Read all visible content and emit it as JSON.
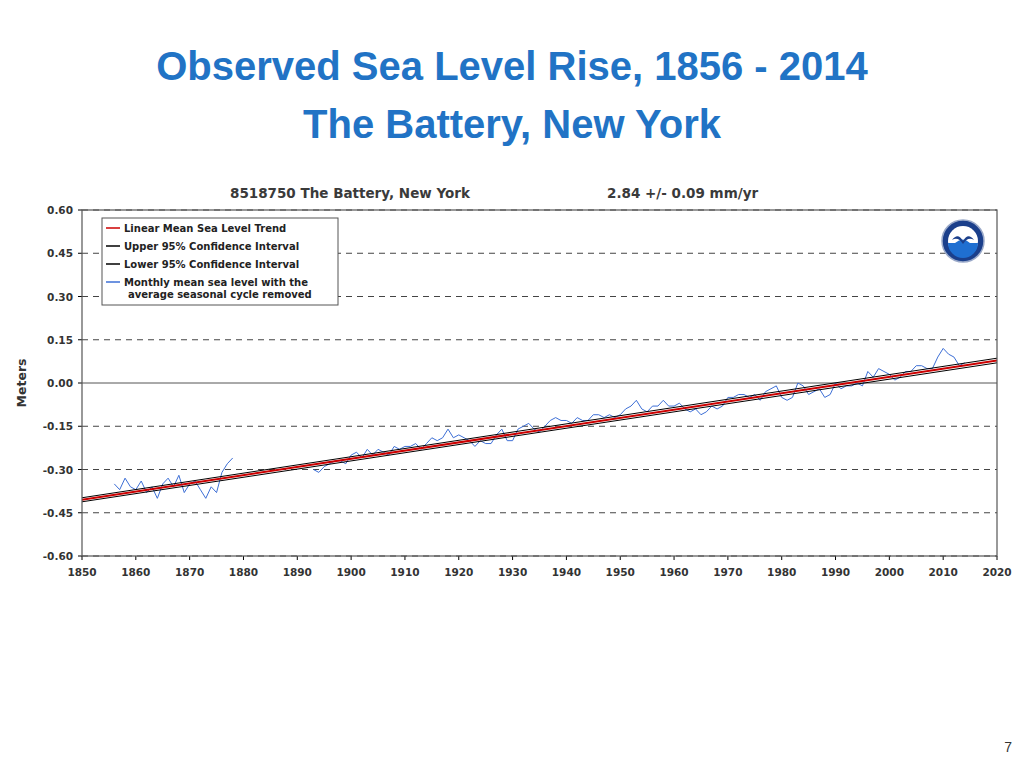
{
  "slide": {
    "title": "Observed Sea Level Rise, 1856 - 2014",
    "subtitle": "The Battery, New York",
    "page_number": 7
  },
  "chart_data": {
    "type": "line",
    "title": "8518750 The Battery, New York",
    "subtitle": "2.84 +/- 0.09 mm/yr",
    "ylabel": "Meters",
    "xlim": [
      1850,
      2020
    ],
    "xticks": [
      1850,
      1860,
      1870,
      1880,
      1890,
      1900,
      1910,
      1920,
      1930,
      1940,
      1950,
      1960,
      1970,
      1980,
      1990,
      2000,
      2010,
      2020
    ],
    "ylim": [
      -0.6,
      0.6
    ],
    "yticks": [
      {
        "value": -0.6,
        "label": "-0.60"
      },
      -0.45,
      {
        "value": -0.3,
        "label": "-0.30"
      },
      -0.15,
      {
        "value": 0,
        "label": "0.00"
      },
      0.15,
      {
        "value": 0.3,
        "label": "0.30"
      },
      0.45,
      {
        "value": 0.6,
        "label": "0.60"
      }
    ],
    "grid": true,
    "legend": "upper left",
    "series": [
      {
        "name": "Linear Mean Sea Level Trend",
        "color": "#cc0000",
        "x": [
          1850,
          2020
        ],
        "values": [
          -0.405,
          0.078
        ]
      },
      {
        "name": "Upper 95% Confidence Interval",
        "color": "#000000",
        "x": [
          1850,
          2020
        ],
        "values": [
          -0.398,
          0.086
        ]
      },
      {
        "name": "Lower 95% Confidence Interval",
        "color": "#000000",
        "x": [
          1850,
          2020
        ],
        "values": [
          -0.412,
          0.07
        ]
      },
      {
        "name": "Monthly mean sea level with the average seasonal cycle removed",
        "color": "#3d6fd6",
        "x": [
          1856,
          1857,
          1858,
          1859,
          1860,
          1861,
          1862,
          1863,
          1864,
          1865,
          1866,
          1867,
          1868,
          1869,
          1870,
          1871,
          1872,
          1873,
          1874,
          1875,
          1876,
          1877,
          1878,
          1885,
          1893,
          1894,
          1895,
          1896,
          1897,
          1898,
          1899,
          1900,
          1901,
          1902,
          1903,
          1904,
          1905,
          1906,
          1907,
          1908,
          1909,
          1910,
          1911,
          1912,
          1913,
          1914,
          1915,
          1916,
          1917,
          1918,
          1919,
          1920,
          1921,
          1922,
          1923,
          1924,
          1925,
          1926,
          1927,
          1928,
          1929,
          1930,
          1931,
          1932,
          1933,
          1934,
          1935,
          1936,
          1937,
          1938,
          1939,
          1940,
          1941,
          1942,
          1943,
          1944,
          1945,
          1946,
          1947,
          1948,
          1949,
          1950,
          1951,
          1952,
          1953,
          1954,
          1955,
          1956,
          1957,
          1958,
          1959,
          1960,
          1961,
          1962,
          1963,
          1964,
          1965,
          1966,
          1967,
          1968,
          1969,
          1970,
          1971,
          1972,
          1973,
          1974,
          1975,
          1976,
          1977,
          1978,
          1979,
          1980,
          1981,
          1982,
          1983,
          1984,
          1985,
          1986,
          1987,
          1988,
          1989,
          1990,
          1991,
          1992,
          1993,
          1994,
          1995,
          1996,
          1997,
          1998,
          1999,
          2000,
          2001,
          2002,
          2003,
          2004,
          2005,
          2006,
          2007,
          2008,
          2009,
          2010,
          2011,
          2012,
          2013,
          2014
        ],
        "values": [
          -0.35,
          -0.37,
          -0.33,
          -0.36,
          -0.37,
          -0.34,
          -0.38,
          -0.36,
          -0.4,
          -0.35,
          -0.33,
          -0.36,
          -0.32,
          -0.38,
          -0.35,
          -0.34,
          -0.37,
          -0.4,
          -0.36,
          -0.38,
          -0.31,
          -0.28,
          -0.26,
          null,
          -0.3,
          -0.31,
          -0.29,
          -0.28,
          -0.27,
          -0.27,
          -0.28,
          -0.25,
          -0.24,
          -0.26,
          -0.23,
          -0.25,
          -0.23,
          -0.24,
          -0.25,
          -0.22,
          -0.23,
          -0.22,
          -0.22,
          -0.21,
          -0.23,
          -0.21,
          -0.19,
          -0.2,
          -0.19,
          -0.16,
          -0.19,
          -0.18,
          -0.19,
          -0.2,
          -0.22,
          -0.2,
          -0.21,
          -0.21,
          -0.18,
          -0.16,
          -0.2,
          -0.2,
          -0.16,
          -0.15,
          -0.14,
          -0.16,
          -0.17,
          -0.15,
          -0.13,
          -0.12,
          -0.13,
          -0.13,
          -0.14,
          -0.12,
          -0.13,
          -0.13,
          -0.11,
          -0.11,
          -0.12,
          -0.11,
          -0.12,
          -0.11,
          -0.09,
          -0.08,
          -0.06,
          -0.09,
          -0.1,
          -0.08,
          -0.08,
          -0.06,
          -0.08,
          -0.08,
          -0.07,
          -0.09,
          -0.1,
          -0.09,
          -0.11,
          -0.1,
          -0.08,
          -0.09,
          -0.08,
          -0.05,
          -0.05,
          -0.04,
          -0.04,
          -0.05,
          -0.04,
          -0.06,
          -0.03,
          -0.02,
          -0.01,
          -0.05,
          -0.06,
          -0.05,
          0,
          -0.01,
          -0.04,
          -0.03,
          -0.02,
          -0.05,
          -0.04,
          0,
          -0.02,
          -0.01,
          -0.01,
          0,
          -0.01,
          0.04,
          0.02,
          0.05,
          0.04,
          0.03,
          0.01,
          0.02,
          0.04,
          0.04,
          0.06,
          0.06,
          0.05,
          0.05,
          0.09,
          0.12,
          0.1,
          0.09,
          0.06,
          0.07
        ]
      }
    ]
  }
}
